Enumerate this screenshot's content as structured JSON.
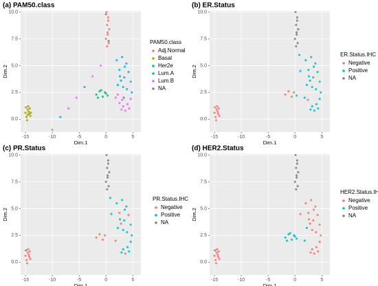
{
  "chart_data": [
    {
      "type": "scatter",
      "title": "(a) PAM50.class",
      "legend_title": "PAM50.class",
      "x_label": "Dim.1",
      "y_label": "Dim.2",
      "xlim": [
        -15.9,
        6.5
      ],
      "ylim": [
        -1.2,
        10.1
      ],
      "xticks": [
        -15,
        -10,
        -5,
        0,
        5
      ],
      "yticks": [
        {
          "value": 0,
          "label": "0.0"
        },
        2.5,
        {
          "value": 5,
          "label": "5.0"
        },
        7.5,
        {
          "value": 10,
          "label": "10.0"
        }
      ],
      "grid": true,
      "series": [
        {
          "name": "Adj.Normal",
          "color": "#F8766D",
          "x": [
            0.1,
            0.4,
            0.2,
            0.6,
            0.3,
            0.0,
            0.5,
            0.2,
            0.4,
            0.3
          ],
          "y": [
            10.0,
            9.5,
            8.8,
            8.4,
            7.9,
            7.5,
            7.1,
            6.8,
            9.2,
            8.1
          ]
        },
        {
          "name": "Basal",
          "color": "#A3A500",
          "x": [
            -14.8,
            -14.3,
            -14.6,
            -14.1,
            -15.0,
            -14.5,
            -14.2,
            -14.7,
            -14.4,
            -14.9,
            -14.0,
            -14.6
          ],
          "y": [
            0.2,
            0.5,
            0.9,
            0.3,
            0.6,
            1.2,
            1.0,
            -0.1,
            0.7,
            1.1,
            0.6,
            0.4
          ]
        },
        {
          "name": "Her2e",
          "color": "#00BF7D",
          "x": [
            -1.8,
            -1.2,
            -0.6,
            -0.2,
            0.3,
            -1.5,
            -0.9,
            0.0
          ],
          "y": [
            2.3,
            2.6,
            2.1,
            2.5,
            2.2,
            2.0,
            2.7,
            2.4
          ]
        },
        {
          "name": "Lum.A",
          "color": "#00B0F6",
          "x": [
            2.0,
            3.0,
            3.8,
            2.5,
            4.2,
            3.4,
            2.8,
            4.6,
            3.2,
            2.2,
            3.9,
            4.8,
            3.5,
            2.6,
            -8.5,
            -4.0
          ],
          "y": [
            5.5,
            5.8,
            5.2,
            4.6,
            4.4,
            3.9,
            3.6,
            3.5,
            3.0,
            3.2,
            2.8,
            2.5,
            4.9,
            4.0,
            0.2,
            3.0
          ]
        },
        {
          "name": "Lum.B",
          "color": "#E76BF3",
          "x": [
            1.8,
            2.5,
            3.2,
            4.0,
            4.6,
            2.9,
            3.6,
            2.2,
            4.3,
            3.0,
            -10.0,
            -7.0,
            -5.5,
            -2.5,
            -1.0
          ],
          "y": [
            2.0,
            1.5,
            1.2,
            1.4,
            1.9,
            0.9,
            0.8,
            2.3,
            1.0,
            1.8,
            -1.0,
            1.0,
            2.0,
            4.0,
            5.0
          ]
        },
        {
          "name": "NA",
          "color": "#7F7F7F",
          "x": [
            0.0,
            0.5,
            3.3
          ],
          "y": [
            9.8,
            7.3,
            2.0
          ]
        }
      ]
    },
    {
      "type": "scatter",
      "title": "(b) ER.Status",
      "legend_title": "ER.Status.IHC",
      "x_label": "Dim.1",
      "y_label": "Dim.2",
      "xlim": [
        -15.9,
        6.5
      ],
      "ylim": [
        -1.2,
        10.1
      ],
      "xticks": [
        -15,
        -10,
        -5,
        0,
        5
      ],
      "yticks": [
        {
          "value": 0,
          "label": "0.0"
        },
        2.5,
        {
          "value": 5,
          "label": "5.0"
        },
        7.5,
        {
          "value": 10,
          "label": "10.0"
        }
      ],
      "grid": true,
      "series": [
        {
          "name": "Negative",
          "color": "#F8766D",
          "x": [
            -14.8,
            -14.3,
            -14.6,
            -14.1,
            -15.0,
            -14.5,
            -14.2,
            -14.7,
            -14.4,
            -14.9,
            -1.8,
            -1.2,
            -0.6,
            -0.2,
            2.4
          ],
          "y": [
            0.2,
            0.5,
            0.9,
            0.3,
            0.6,
            1.2,
            1.0,
            -0.1,
            0.7,
            1.1,
            2.3,
            2.6,
            2.1,
            2.5,
            1.8
          ]
        },
        {
          "name": "Positive",
          "color": "#00BFC4",
          "x": [
            2.0,
            3.0,
            3.8,
            2.5,
            4.2,
            3.4,
            2.8,
            4.6,
            3.2,
            2.2,
            3.9,
            4.8,
            3.5,
            2.6,
            1.8,
            3.2,
            4.0,
            4.6,
            2.9,
            3.6,
            4.3,
            0.3,
            1.0,
            0.8
          ],
          "y": [
            5.5,
            5.8,
            5.2,
            4.6,
            4.4,
            3.9,
            3.6,
            3.5,
            3.0,
            3.2,
            2.8,
            2.5,
            4.9,
            4.0,
            2.0,
            1.2,
            1.4,
            1.9,
            0.9,
            0.8,
            1.0,
            2.2,
            4.5,
            6.0
          ]
        },
        {
          "name": "NA",
          "color": "#7F7F7F",
          "x": [
            0.1,
            0.4,
            0.2,
            0.6,
            0.3,
            0.0,
            0.5,
            0.2,
            0.4,
            0.3
          ],
          "y": [
            10.0,
            9.5,
            8.8,
            8.4,
            7.9,
            7.5,
            7.1,
            6.8,
            9.2,
            8.1
          ]
        }
      ]
    },
    {
      "type": "scatter",
      "title": "(c) PR.Status",
      "legend_title": "PR.Status.IHC",
      "x_label": "Dim.1",
      "y_label": "Dim.2",
      "xlim": [
        -15.9,
        6.5
      ],
      "ylim": [
        -1.2,
        10.1
      ],
      "xticks": [
        -15,
        -10,
        -5,
        0,
        5
      ],
      "yticks": [
        {
          "value": 0,
          "label": "0.0"
        },
        2.5,
        {
          "value": 5,
          "label": "5.0"
        },
        7.5,
        {
          "value": 10,
          "label": "10.0"
        }
      ],
      "grid": true,
      "series": [
        {
          "name": "Negative",
          "color": "#F8766D",
          "x": [
            -14.8,
            -14.3,
            -14.6,
            -14.1,
            -15.0,
            -14.5,
            -14.2,
            -14.7,
            -14.4,
            -1.8,
            -1.2,
            -0.6,
            -0.2,
            2.5,
            3.6,
            4.2,
            2.8,
            1.8
          ],
          "y": [
            0.2,
            0.5,
            0.9,
            0.3,
            0.6,
            1.2,
            1.0,
            -0.1,
            0.7,
            2.3,
            2.6,
            2.1,
            2.5,
            4.6,
            0.8,
            4.4,
            3.6,
            2.0
          ]
        },
        {
          "name": "Positive",
          "color": "#00BFC4",
          "x": [
            2.0,
            3.0,
            3.8,
            3.4,
            4.6,
            3.2,
            2.2,
            3.9,
            4.8,
            3.5,
            2.6,
            3.2,
            4.0,
            4.6,
            2.9,
            4.3,
            1.0,
            0.8
          ],
          "y": [
            5.5,
            5.8,
            5.2,
            3.9,
            3.5,
            3.0,
            3.2,
            2.8,
            2.5,
            4.9,
            4.0,
            1.2,
            1.4,
            1.9,
            0.9,
            1.0,
            4.5,
            6.0
          ]
        },
        {
          "name": "NA",
          "color": "#7F7F7F",
          "x": [
            0.1,
            0.4,
            0.2,
            0.6,
            0.3,
            0.0,
            0.5,
            0.2,
            0.4,
            0.3,
            -14.9
          ],
          "y": [
            10.0,
            9.5,
            8.8,
            8.4,
            7.9,
            7.5,
            7.1,
            6.8,
            9.2,
            8.1,
            1.1
          ]
        }
      ]
    },
    {
      "type": "scatter",
      "title": "(d) HER2.Status",
      "legend_title": "HER2.Status.IHC",
      "x_label": "Dim.1",
      "y_label": "Dim.2",
      "xlim": [
        -15.9,
        6.5
      ],
      "ylim": [
        -1.2,
        10.1
      ],
      "xticks": [
        -15,
        -10,
        -5,
        0,
        5
      ],
      "yticks": [
        {
          "value": 0,
          "label": "0.0"
        },
        2.5,
        {
          "value": 5,
          "label": "5.0"
        },
        7.5,
        {
          "value": 10,
          "label": "10.0"
        }
      ],
      "grid": true,
      "series": [
        {
          "name": "Negative",
          "color": "#F8766D",
          "x": [
            -14.8,
            -14.3,
            -14.6,
            -14.1,
            -15.0,
            -14.5,
            -14.2,
            -14.7,
            -14.4,
            2.0,
            3.0,
            3.8,
            2.5,
            4.2,
            3.4,
            2.8,
            4.6,
            3.2,
            3.9,
            4.8,
            3.5,
            2.6,
            3.2,
            4.0,
            4.6,
            2.9,
            3.6,
            4.3,
            1.0
          ],
          "y": [
            0.2,
            0.5,
            0.9,
            0.3,
            0.6,
            1.2,
            1.0,
            -0.1,
            0.7,
            5.5,
            5.8,
            5.2,
            4.6,
            4.4,
            3.9,
            3.6,
            3.5,
            3.0,
            2.8,
            2.5,
            4.9,
            4.0,
            1.2,
            1.4,
            1.9,
            0.9,
            0.8,
            1.0,
            4.5
          ]
        },
        {
          "name": "Positive",
          "color": "#00BFC4",
          "x": [
            -1.8,
            -1.2,
            -0.6,
            -0.2,
            0.3,
            -1.5,
            -0.9,
            0.0,
            1.8,
            2.2
          ],
          "y": [
            2.3,
            2.6,
            2.1,
            2.5,
            2.2,
            2.0,
            2.7,
            2.4,
            2.0,
            3.2
          ]
        },
        {
          "name": "NA",
          "color": "#7F7F7F",
          "x": [
            0.1,
            0.4,
            0.2,
            0.6,
            0.3,
            0.0,
            0.5,
            0.2,
            0.4,
            0.3,
            -14.9
          ],
          "y": [
            10.0,
            9.5,
            8.8,
            8.4,
            7.9,
            7.5,
            7.1,
            6.8,
            9.2,
            8.1,
            1.1
          ]
        }
      ]
    }
  ]
}
